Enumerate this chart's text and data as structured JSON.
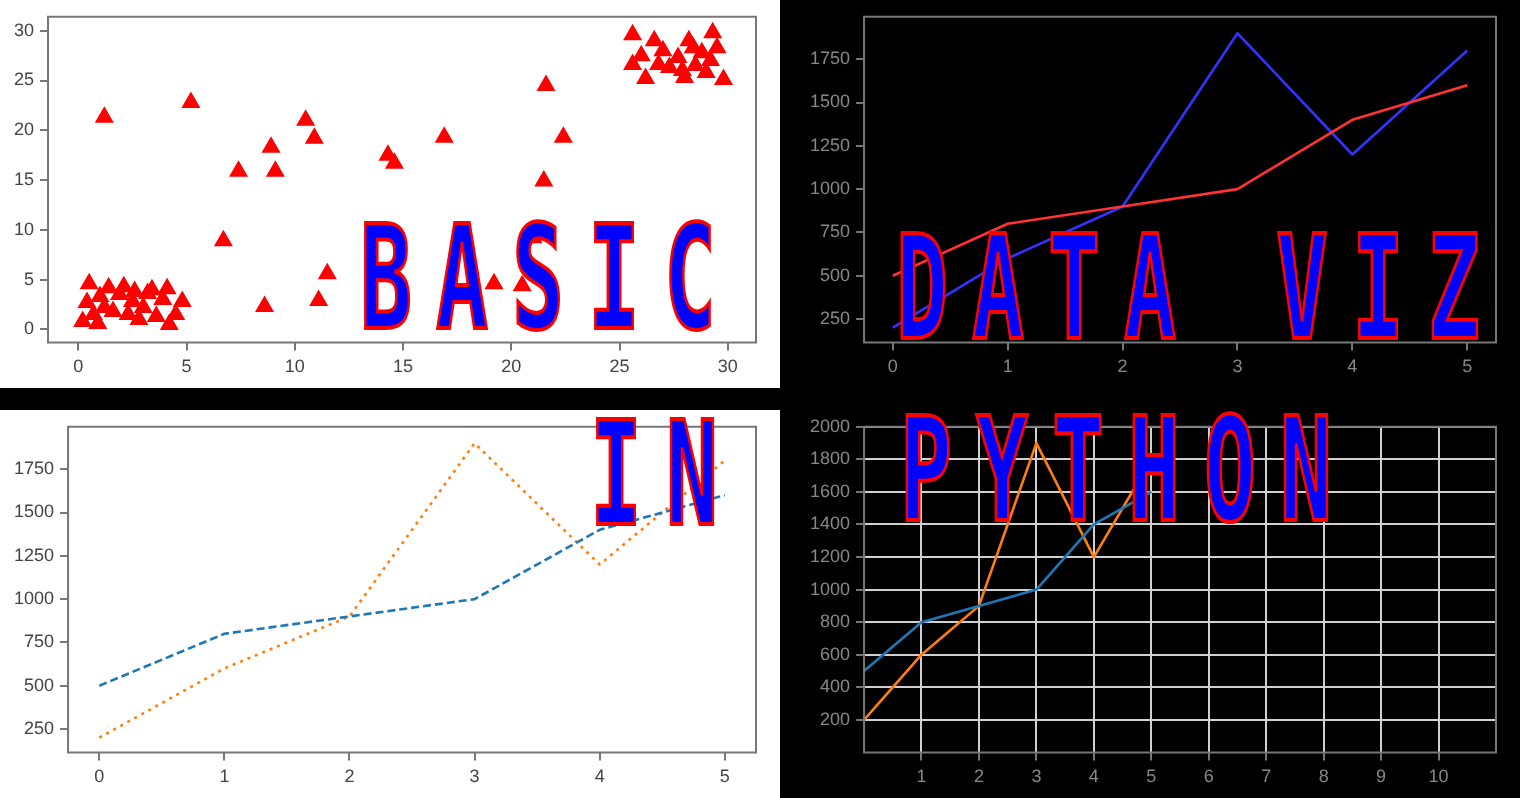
{
  "chart_data": [
    {
      "type": "scatter",
      "annotations": [
        "BASIC"
      ],
      "xlim": [
        -1.4,
        31.3
      ],
      "xticks": [
        0,
        5,
        10,
        15,
        20,
        25,
        30
      ],
      "ylim": [
        -1.3,
        31.4
      ],
      "yticks": [
        0,
        5,
        10,
        15,
        20,
        25,
        30
      ],
      "marker": "triangle",
      "series": [
        {
          "color": "#ff0000",
          "x": [
            0.2,
            0.4,
            0.5,
            0.7,
            1,
            1.2,
            1.4,
            1.6,
            1.9,
            2.1,
            2.3,
            2.5,
            2.8,
            3,
            3.2,
            3.4,
            3.6,
            3.9,
            4.1,
            4.2,
            4.5,
            4.8,
            0.9,
            2.6,
            1.2,
            5.2,
            6.7,
            7.4,
            8.6,
            8.9,
            9.1,
            10.5,
            10.9,
            11.1,
            11.5,
            14.3,
            14.6,
            16.9,
            19.2,
            20.5,
            21,
            21.5,
            21.6,
            22.4,
            25.6,
            25.6,
            26,
            26.2,
            26.6,
            27,
            27.3,
            27.7,
            28,
            28.2,
            28.5,
            28.8,
            29,
            29.3,
            29.5,
            29.8,
            26.8,
            28.4,
            27.9,
            29.2
          ],
          "values": [
            0.8,
            2.7,
            4.6,
            1.5,
            3.3,
            2.2,
            4.2,
            1.8,
            3.5,
            4.3,
            1.5,
            2.8,
            1,
            2.2,
            3.6,
            4,
            1.3,
            3,
            4.1,
            0.5,
            1.5,
            2.8,
            0.6,
            3.8,
            21.3,
            22.8,
            8.9,
            15.9,
            2.3,
            18.3,
            15.9,
            21,
            19.2,
            2.9,
            5.6,
            17.5,
            16.7,
            19.3,
            4.6,
            4.4,
            9.2,
            14.9,
            24.5,
            19.3,
            29.6,
            26.6,
            27.5,
            25.2,
            29,
            28,
            26.3,
            27.3,
            25.3,
            29,
            26.5,
            27.8,
            25.8,
            29.8,
            28.3,
            25.1,
            26.6,
            28.3,
            26,
            27
          ]
        }
      ]
    },
    {
      "type": "line",
      "annotations": [
        "DATA VIZ"
      ],
      "x": [
        0,
        1,
        2,
        3,
        4,
        5
      ],
      "xlim": [
        -0.25,
        5.25
      ],
      "xticks": [
        0,
        1,
        2,
        3,
        4,
        5
      ],
      "ylim": [
        115,
        1995
      ],
      "yticks": [
        250,
        500,
        750,
        1000,
        1250,
        1500,
        1750
      ],
      "series": [
        {
          "color": "#ff3333",
          "values": [
            500,
            800,
            900,
            1000,
            1400,
            1600
          ]
        },
        {
          "color": "#3333ff",
          "values": [
            200,
            600,
            900,
            1900,
            1200,
            1800
          ]
        }
      ]
    },
    {
      "type": "line",
      "annotations": [
        "IN"
      ],
      "x": [
        0,
        1,
        2,
        3,
        4,
        5
      ],
      "xlim": [
        -0.25,
        5.25
      ],
      "xticks": [
        0,
        1,
        2,
        3,
        4,
        5
      ],
      "ylim": [
        115,
        1995
      ],
      "yticks": [
        250,
        500,
        750,
        1000,
        1250,
        1500,
        1750
      ],
      "series": [
        {
          "color": "#1f77b4",
          "line_style": "dashed",
          "values": [
            500,
            800,
            900,
            1000,
            1400,
            1600
          ]
        },
        {
          "color": "#ff7f0e",
          "line_style": "dotted",
          "values": [
            200,
            600,
            900,
            1900,
            1200,
            1800
          ]
        }
      ]
    },
    {
      "type": "line",
      "annotations": [
        "PYTHON"
      ],
      "x": [
        0,
        1,
        2,
        3,
        4,
        5
      ],
      "xlim": [
        0,
        11
      ],
      "xticks": [
        1,
        2,
        3,
        4,
        5,
        6,
        7,
        8,
        9,
        10
      ],
      "ylim": [
        0,
        2000
      ],
      "yticks": [
        200,
        400,
        600,
        800,
        1000,
        1200,
        1400,
        1600,
        1800,
        2000
      ],
      "grid": true,
      "series": [
        {
          "color": "#1f77b4",
          "values": [
            500,
            800,
            900,
            1000,
            1400,
            1600
          ]
        },
        {
          "color": "#ff7f0e",
          "values": [
            200,
            600,
            900,
            1900,
            1200,
            1800
          ]
        }
      ]
    }
  ]
}
